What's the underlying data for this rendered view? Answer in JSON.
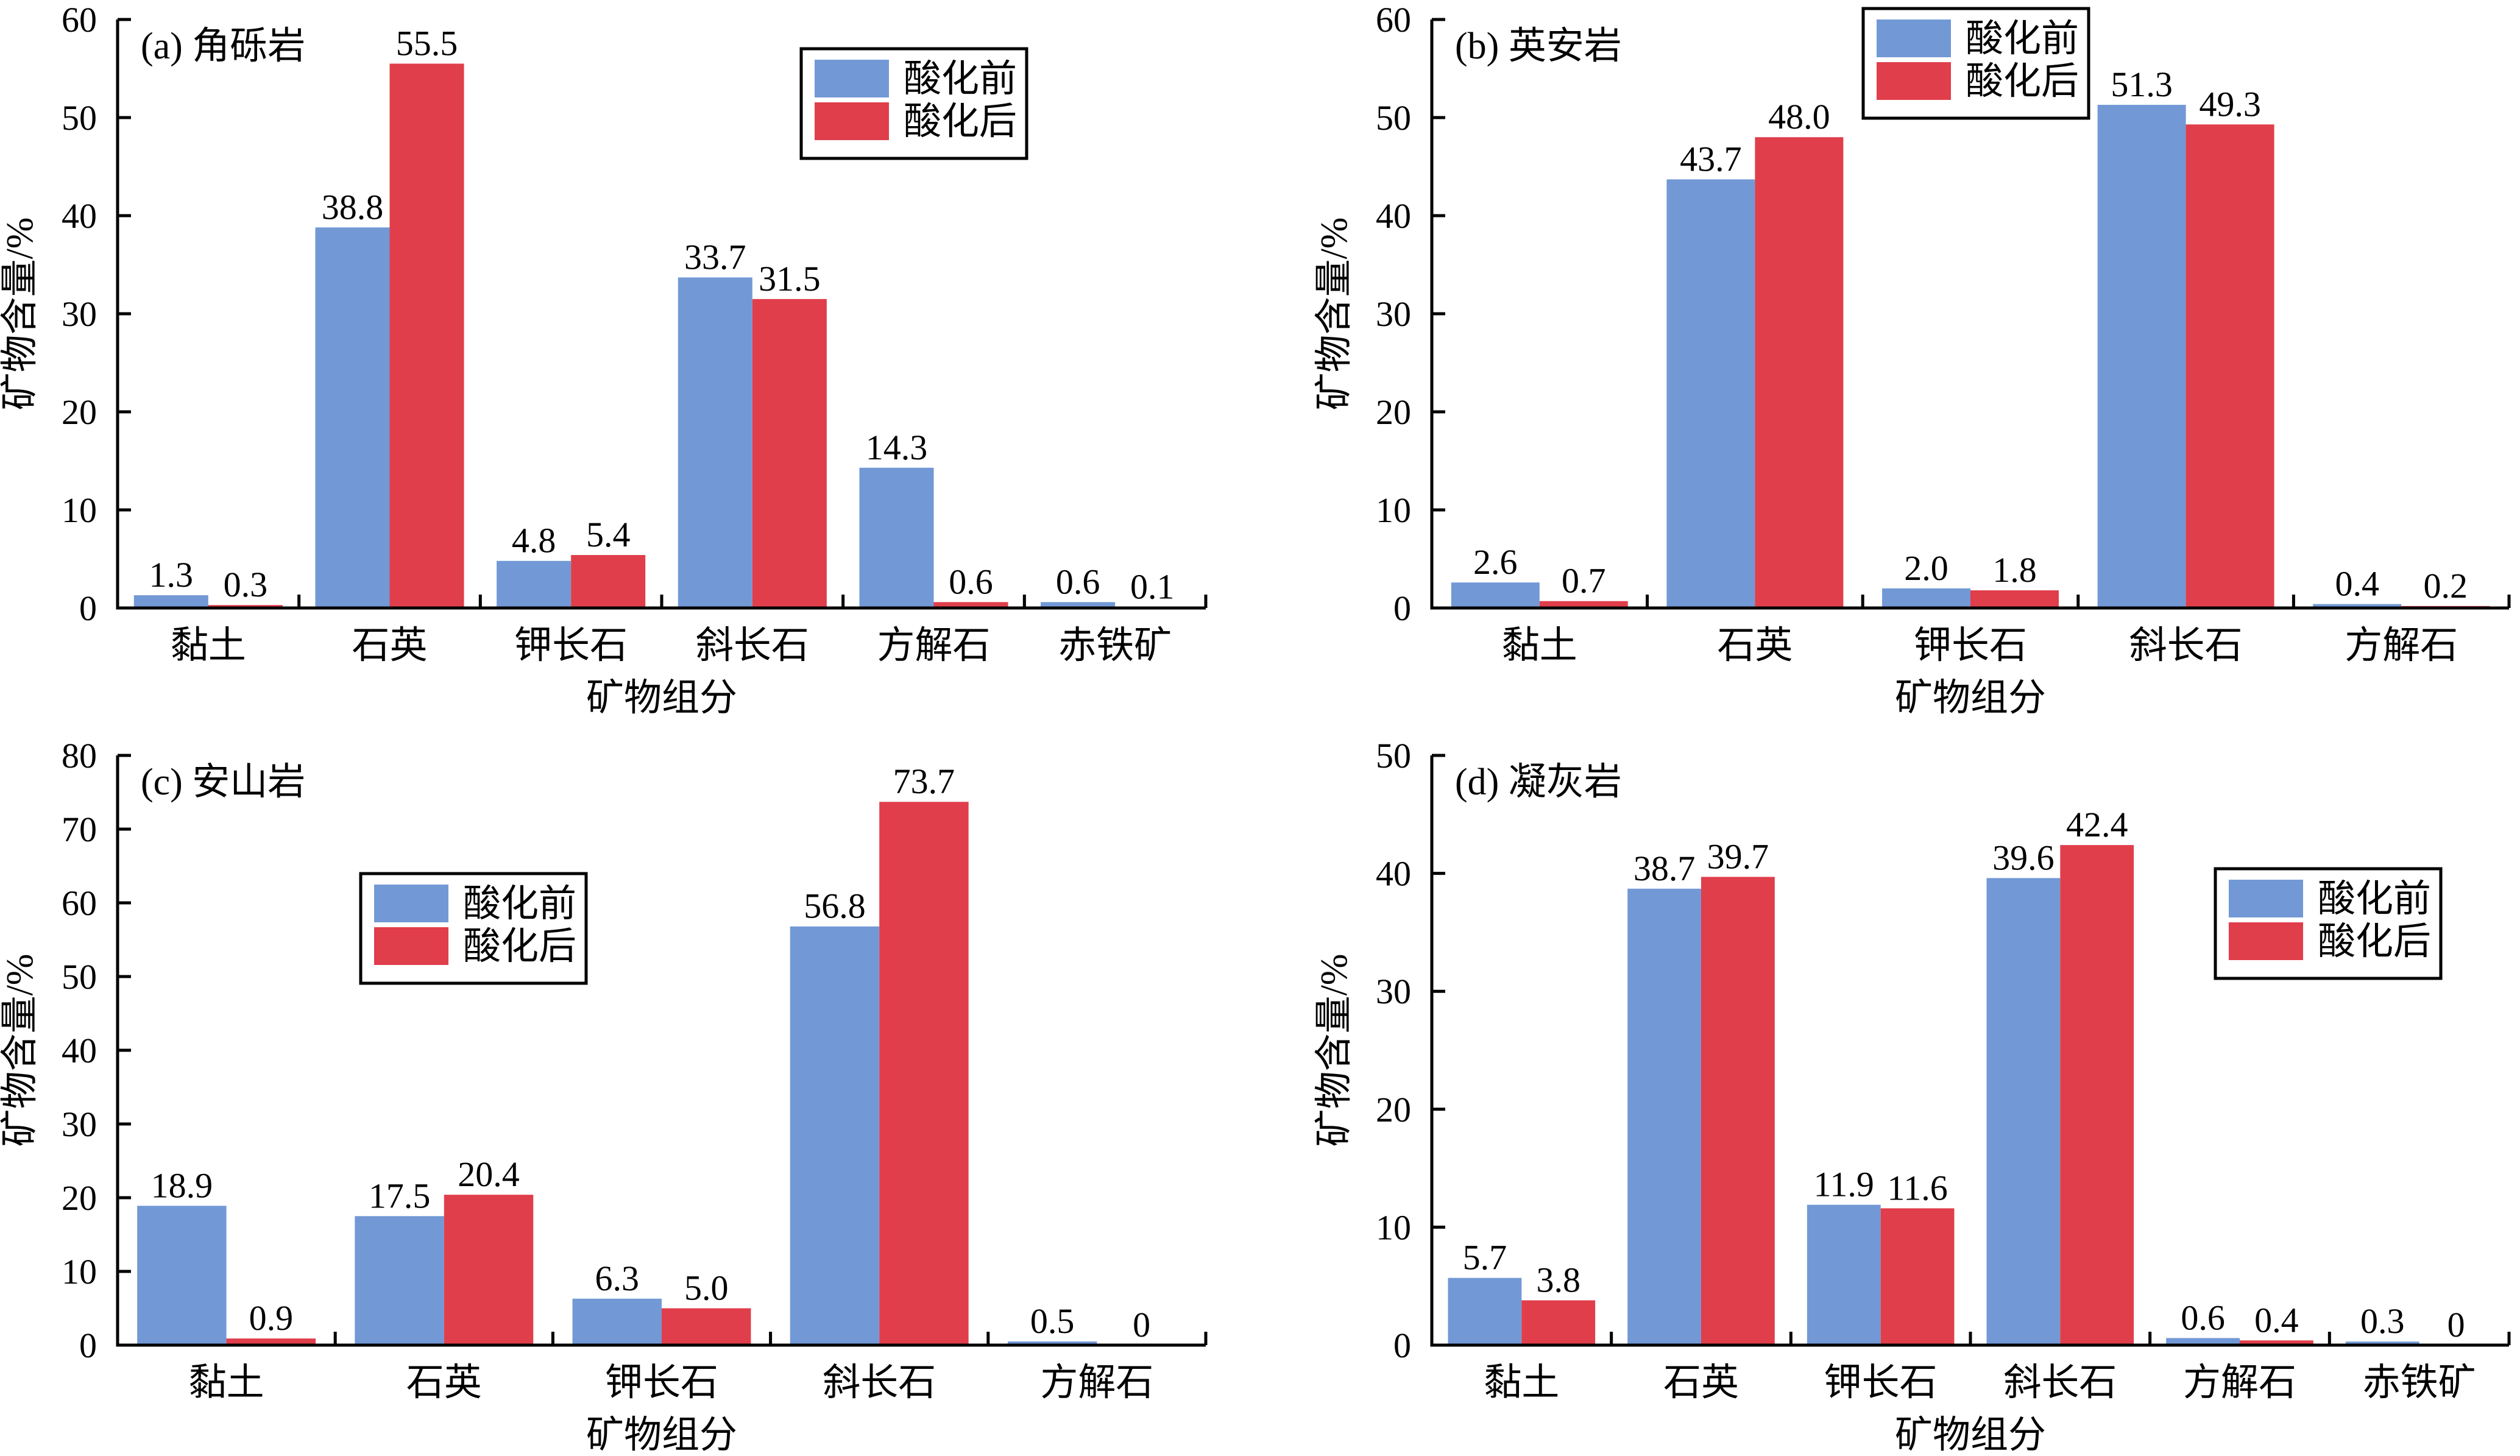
{
  "chart_data": [
    {
      "type": "bar",
      "id": "a",
      "title": "(a) 角砾岩",
      "xlabel": "矿物组分",
      "ylabel": "矿物含量/%",
      "ylim": [
        0,
        60
      ],
      "yticks": [
        0,
        10,
        20,
        30,
        40,
        50,
        60
      ],
      "categories": [
        "黏土",
        "石英",
        "钾长石",
        "斜长石",
        "方解石",
        "赤铁矿"
      ],
      "series": [
        {
          "name": "酸化前",
          "color": "#7299d6",
          "values": [
            1.3,
            38.8,
            4.8,
            33.7,
            14.3,
            0.6
          ],
          "labels": [
            "1.3",
            "38.8",
            "4.8",
            "33.7",
            "14.3",
            "0.6"
          ]
        },
        {
          "name": "酸化后",
          "color": "#e03e4b",
          "values": [
            0.3,
            55.5,
            5.4,
            31.5,
            0.6,
            0.1
          ],
          "labels": [
            "0.3",
            "55.5",
            "5.4",
            "31.5",
            "0.6",
            "0.1"
          ]
        }
      ],
      "legend": "top-right"
    },
    {
      "type": "bar",
      "id": "b",
      "title": "(b) 英安岩",
      "xlabel": "矿物组分",
      "ylabel": "矿物含量/%",
      "ylim": [
        0,
        60
      ],
      "yticks": [
        0,
        10,
        20,
        30,
        40,
        50,
        60
      ],
      "categories": [
        "黏土",
        "石英",
        "钾长石",
        "斜长石",
        "方解石"
      ],
      "series": [
        {
          "name": "酸化前",
          "color": "#7299d6",
          "values": [
            2.6,
            43.7,
            2.0,
            51.3,
            0.4
          ],
          "labels": [
            "2.6",
            "43.7",
            "2.0",
            "51.3",
            "0.4"
          ]
        },
        {
          "name": "酸化后",
          "color": "#e03e4b",
          "values": [
            0.7,
            48.0,
            1.8,
            49.3,
            0.2
          ],
          "labels": [
            "0.7",
            "48.0",
            "1.8",
            "49.3",
            "0.2"
          ]
        }
      ],
      "legend": "top-center"
    },
    {
      "type": "bar",
      "id": "c",
      "title": "(c) 安山岩",
      "xlabel": "矿物组分",
      "ylabel": "矿物含量/%",
      "ylim": [
        0,
        80
      ],
      "yticks": [
        0,
        10,
        20,
        30,
        40,
        50,
        60,
        70,
        80
      ],
      "categories": [
        "黏土",
        "石英",
        "钾长石",
        "斜长石",
        "方解石"
      ],
      "series": [
        {
          "name": "酸化前",
          "color": "#7299d6",
          "values": [
            18.9,
            17.5,
            6.3,
            56.8,
            0.5
          ],
          "labels": [
            "18.9",
            "17.5",
            "6.3",
            "56.8",
            "0.5"
          ]
        },
        {
          "name": "酸化后",
          "color": "#e03e4b",
          "values": [
            0.9,
            20.4,
            5.0,
            73.7,
            0
          ],
          "labels": [
            "0.9",
            "20.4",
            "5.0",
            "73.7",
            "0"
          ]
        }
      ],
      "legend": "center-left"
    },
    {
      "type": "bar",
      "id": "d",
      "title": "(d) 凝灰岩",
      "xlabel": "矿物组分",
      "ylabel": "矿物含量/%",
      "ylim": [
        0,
        50
      ],
      "yticks": [
        0,
        10,
        20,
        30,
        40,
        50
      ],
      "categories": [
        "黏土",
        "石英",
        "钾长石",
        "斜长石",
        "方解石",
        "赤铁矿"
      ],
      "series": [
        {
          "name": "酸化前",
          "color": "#7299d6",
          "values": [
            5.7,
            38.7,
            11.9,
            39.6,
            0.6,
            0.3
          ],
          "labels": [
            "5.7",
            "38.7",
            "11.9",
            "39.6",
            "0.6",
            "0.3"
          ]
        },
        {
          "name": "酸化后",
          "color": "#e03e4b",
          "values": [
            3.8,
            39.7,
            11.6,
            42.4,
            0.4,
            0
          ],
          "labels": [
            "3.8",
            "39.7",
            "11.6",
            "42.4",
            "0.4",
            "0"
          ]
        }
      ],
      "legend": "right"
    }
  ]
}
